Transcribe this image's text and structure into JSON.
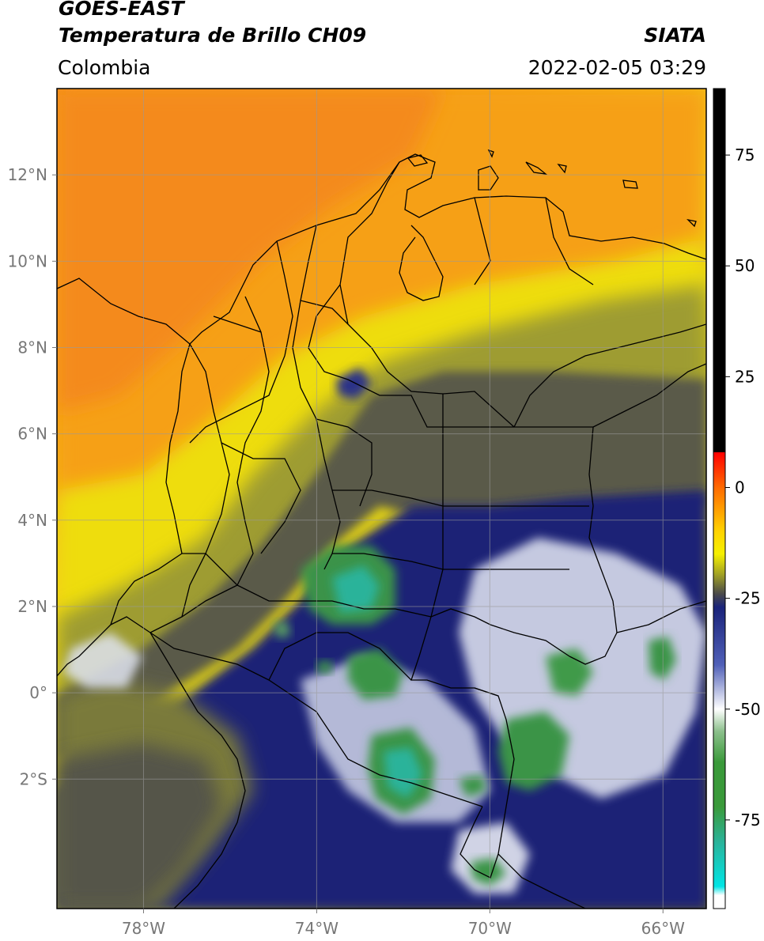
{
  "header": {
    "satellite": "GOES-EAST",
    "product": "Temperatura de Brillo CH09",
    "source": "SIATA",
    "region": "Colombia",
    "datetime": "2022-02-05 03:29"
  },
  "map": {
    "lon_range": [
      -80,
      -65
    ],
    "lat_range": [
      -5.0,
      14.0
    ],
    "lon_ticks": [
      {
        "value": -78,
        "label": "78°W"
      },
      {
        "value": -74,
        "label": "74°W"
      },
      {
        "value": -70,
        "label": "70°W"
      },
      {
        "value": -66,
        "label": "66°W"
      }
    ],
    "lat_ticks": [
      {
        "value": 12,
        "label": "12°N"
      },
      {
        "value": 10,
        "label": "10°N"
      },
      {
        "value": 8,
        "label": "8°N"
      },
      {
        "value": 6,
        "label": "6°N"
      },
      {
        "value": 4,
        "label": "4°N"
      },
      {
        "value": 2,
        "label": "2°N"
      },
      {
        "value": 0,
        "label": "0°"
      },
      {
        "value": -2,
        "label": "2°S"
      }
    ],
    "colors": {
      "orange": "#f7a21a",
      "yellow": "#f2e20c",
      "olive": "#8a8a2a",
      "gray": "#545454",
      "navy": "#1c2476",
      "white": "#eef0f4",
      "green": "#3c9446",
      "teal": "#2bb39a",
      "gridline": "#9a9a9a",
      "border": "#000000"
    }
  },
  "colorbar": {
    "range": [
      -95,
      90
    ],
    "ticks": [
      {
        "value": 75,
        "label": "75"
      },
      {
        "value": 50,
        "label": "50"
      },
      {
        "value": 25,
        "label": "25"
      },
      {
        "value": 0,
        "label": "0"
      },
      {
        "value": -25,
        "label": "-25"
      },
      {
        "value": -50,
        "label": "-50"
      },
      {
        "value": -75,
        "label": "-75"
      }
    ],
    "stops": [
      {
        "value": 90,
        "color": "#000000"
      },
      {
        "value": 8,
        "color": "#000000"
      },
      {
        "value": 7.9,
        "color": "#ff0000"
      },
      {
        "value": 0,
        "color": "#ff6a00"
      },
      {
        "value": -10,
        "color": "#ffd400"
      },
      {
        "value": -15,
        "color": "#f5f000"
      },
      {
        "value": -20,
        "color": "#9a9a28"
      },
      {
        "value": -24,
        "color": "#4a4a4a"
      },
      {
        "value": -27,
        "color": "#1a237a"
      },
      {
        "value": -40,
        "color": "#5060b8"
      },
      {
        "value": -50,
        "color": "#ffffff"
      },
      {
        "value": -55,
        "color": "#8cc08c"
      },
      {
        "value": -62,
        "color": "#3a9a3a"
      },
      {
        "value": -72,
        "color": "#3a9a3a"
      },
      {
        "value": -80,
        "color": "#2ab39a"
      },
      {
        "value": -90,
        "color": "#00e5e5"
      },
      {
        "value": -92,
        "color": "#ffffff"
      },
      {
        "value": -95,
        "color": "#ffffff"
      }
    ]
  }
}
